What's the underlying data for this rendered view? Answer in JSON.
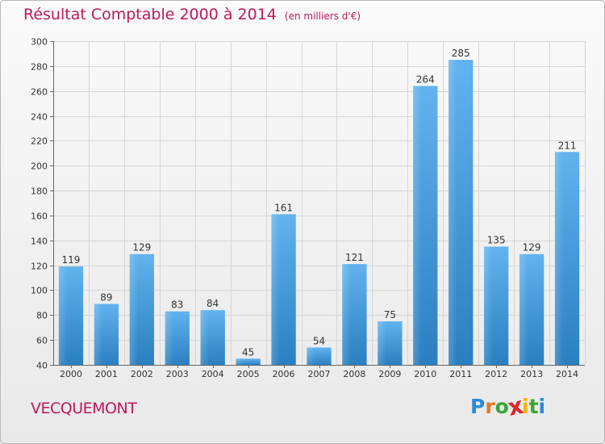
{
  "header": {
    "title": "Résultat Comptable 2000 à 2014",
    "subtitle": "(en milliers d'€)"
  },
  "footer": {
    "commune": "VECQUEMONT",
    "logo_letters": [
      "P",
      "r",
      "o",
      "x",
      "i",
      "t",
      "i"
    ],
    "logo_colors": [
      "#2b8ad9",
      "#e87722",
      "#3aa535",
      "#d72a2a",
      "#f2b800",
      "#3aa535",
      "#2b8ad9"
    ]
  },
  "colors": {
    "accent": "#c0185a",
    "bar_light": "#62b3ee",
    "bar_dark": "#2a7fc0",
    "grid": "#d6d6d6"
  },
  "chart_data": {
    "type": "bar",
    "title": "Résultat Comptable 2000 à 2014",
    "subtitle": "(en milliers d'€)",
    "xlabel": "",
    "ylabel": "",
    "categories": [
      "2000",
      "2001",
      "2002",
      "2003",
      "2004",
      "2005",
      "2006",
      "2007",
      "2008",
      "2009",
      "2010",
      "2011",
      "2012",
      "2013",
      "2014"
    ],
    "values": [
      119,
      89,
      129,
      83,
      84,
      45,
      161,
      54,
      121,
      75,
      264,
      285,
      135,
      129,
      211
    ],
    "ylim": [
      40,
      300
    ],
    "yticks": [
      40,
      60,
      80,
      100,
      120,
      140,
      160,
      180,
      200,
      220,
      240,
      260,
      280,
      300
    ],
    "grid": true
  }
}
